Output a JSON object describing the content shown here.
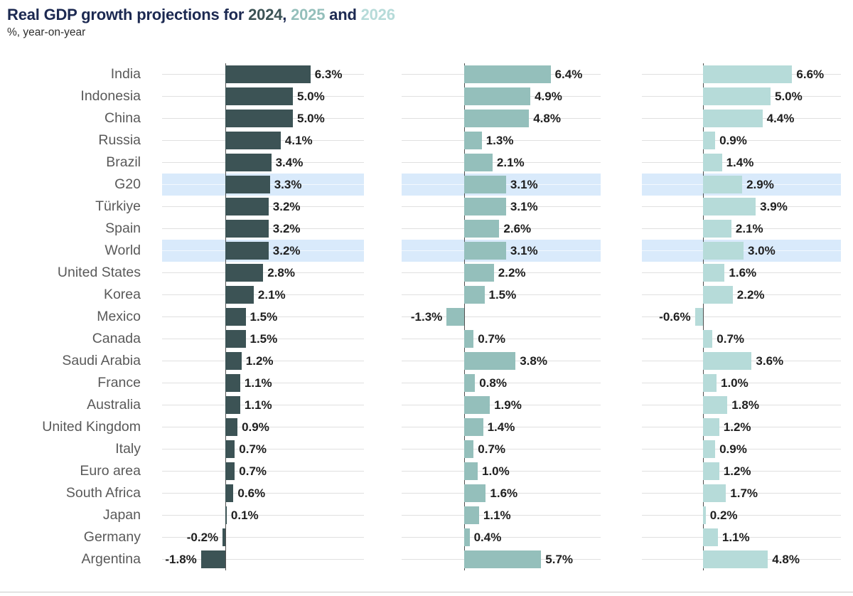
{
  "header": {
    "title_prefix": "Real GDP growth projections for ",
    "year1": "2024",
    "sep1": ", ",
    "year2": "2025",
    "sep2": " and ",
    "year3": "2026",
    "subtitle": "%, year-on-year"
  },
  "colors": {
    "title_navy": "#1c2951",
    "bar_2024": "#3c5355",
    "bar_2025": "#94bfbb",
    "bar_2026": "#b6dbd9",
    "highlight_band": "#d9eafb",
    "gridline": "#e0e0e0",
    "axis_line": "#515151",
    "country_label": "#595959",
    "value_label": "#1f1f1f"
  },
  "chart_data": {
    "type": "bar",
    "orientation": "horizontal",
    "title": "Real GDP growth projections for 2024, 2025 and 2026",
    "subtitle": "%, year-on-year",
    "unit": "%",
    "value_suffix": "%",
    "categories": [
      "India",
      "Indonesia",
      "China",
      "Russia",
      "Brazil",
      "G20",
      "Türkiye",
      "Spain",
      "World",
      "United States",
      "Korea",
      "Mexico",
      "Canada",
      "Saudi Arabia",
      "France",
      "Australia",
      "United Kingdom",
      "Italy",
      "Euro area",
      "South Africa",
      "Japan",
      "Germany",
      "Argentina"
    ],
    "highlighted_categories": [
      "G20",
      "World"
    ],
    "series": [
      {
        "name": "2024",
        "values": [
          6.3,
          5.0,
          5.0,
          4.1,
          3.4,
          3.3,
          3.2,
          3.2,
          3.2,
          2.8,
          2.1,
          1.5,
          1.5,
          1.2,
          1.1,
          1.1,
          0.9,
          0.7,
          0.7,
          0.6,
          0.1,
          -0.2,
          -1.8
        ]
      },
      {
        "name": "2025",
        "values": [
          6.4,
          4.9,
          4.8,
          1.3,
          2.1,
          3.1,
          3.1,
          2.6,
          3.1,
          2.2,
          1.5,
          -1.3,
          0.7,
          3.8,
          0.8,
          1.9,
          1.4,
          0.7,
          1.0,
          1.6,
          1.1,
          0.4,
          5.7
        ]
      },
      {
        "name": "2026",
        "values": [
          6.6,
          5.0,
          4.4,
          0.9,
          1.4,
          2.9,
          3.9,
          2.1,
          3.0,
          1.6,
          2.2,
          -0.6,
          0.7,
          3.6,
          1.0,
          1.8,
          1.2,
          0.9,
          1.2,
          1.7,
          0.2,
          1.1,
          4.8
        ]
      }
    ],
    "grid": "horizontal-per-row",
    "legend_position": "in-title",
    "xlim_estimate_per_panel": [
      -4.6,
      10.2
    ]
  }
}
